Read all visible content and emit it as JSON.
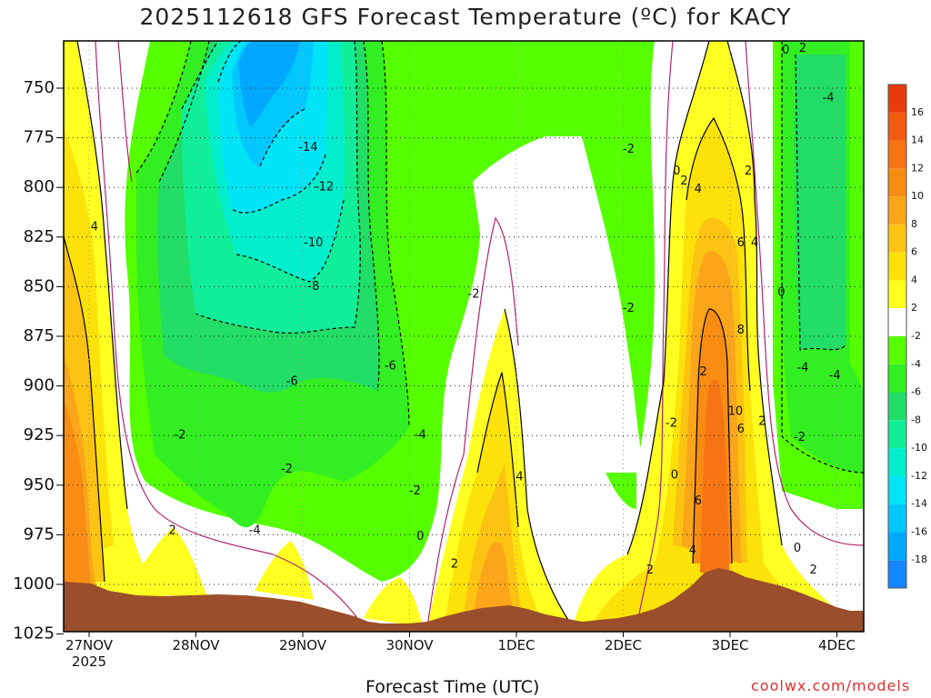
{
  "title": "2025112618 GFS Forecast Temperature (ºC) for KACY",
  "credit": "coolwx.com/models",
  "chart_data": {
    "type": "heatmap",
    "title": "2025112618 GFS Forecast Temperature (ºC) for KACY",
    "xlabel": "Forecast Time (UTC)",
    "ylabel": "",
    "y_axis": {
      "ticks": [
        "750",
        "775",
        "800",
        "825",
        "850",
        "875",
        "900",
        "925",
        "950",
        "975",
        "1000",
        "1025"
      ],
      "range_hpa": [
        725,
        1030
      ],
      "inverted": true
    },
    "x_axis": {
      "ticks": [
        "27NOV",
        "28NOV",
        "29NOV",
        "30NOV",
        "1DEC",
        "2DEC",
        "3DEC",
        "4DEC"
      ],
      "first_tick_sublabel": "2025",
      "range_days": [
        0,
        7.42
      ]
    },
    "grid": "dotted",
    "colorbar": {
      "levels": [
        16,
        14,
        12,
        10,
        8,
        6,
        4,
        2,
        -2,
        -4,
        -6,
        -8,
        -10,
        -12,
        -14,
        -16,
        -18
      ],
      "colors": [
        "#e83a0a",
        "#f25a10",
        "#f77414",
        "#f98c12",
        "#fba51a",
        "#fcc312",
        "#fde20a",
        "#ffff22",
        "#ffffff",
        "#55ff00",
        "#33ee22",
        "#22dd66",
        "#11ee99",
        "#00eecc",
        "#00e5f5",
        "#00c8ff",
        "#00a8ff",
        "#1188ff"
      ]
    },
    "terrain_color": "#9b4e2c",
    "contour_labels": [
      {
        "text": "4",
        "day": 0.05,
        "p": 820
      },
      {
        "text": "-14",
        "day": 2.05,
        "p": 780
      },
      {
        "text": "-12",
        "day": 2.2,
        "p": 800
      },
      {
        "text": "-10",
        "day": 2.1,
        "p": 828
      },
      {
        "text": "-8",
        "day": 2.1,
        "p": 850
      },
      {
        "text": "-6",
        "day": 1.9,
        "p": 898
      },
      {
        "text": "-6",
        "day": 2.82,
        "p": 890
      },
      {
        "text": "-4",
        "day": 3.1,
        "p": 925
      },
      {
        "text": "-2",
        "day": 0.85,
        "p": 925
      },
      {
        "text": "-2",
        "day": 1.85,
        "p": 942
      },
      {
        "text": "-4",
        "day": 1.55,
        "p": 973
      },
      {
        "text": "2",
        "day": 0.78,
        "p": 973
      },
      {
        "text": "-2",
        "day": 3.05,
        "p": 953
      },
      {
        "text": "0",
        "day": 3.1,
        "p": 976
      },
      {
        "text": "2",
        "day": 3.42,
        "p": 990
      },
      {
        "text": "-2",
        "day": 3.6,
        "p": 854
      },
      {
        "text": "4",
        "day": 4.03,
        "p": 946
      },
      {
        "text": "-2",
        "day": 5.05,
        "p": 781
      },
      {
        "text": "-2",
        "day": 5.05,
        "p": 861
      },
      {
        "text": "-2",
        "day": 5.45,
        "p": 919
      },
      {
        "text": "0",
        "day": 5.5,
        "p": 792
      },
      {
        "text": "2",
        "day": 5.57,
        "p": 797
      },
      {
        "text": "4",
        "day": 5.7,
        "p": 801
      },
      {
        "text": "2",
        "day": 6.17,
        "p": 792
      },
      {
        "text": "6",
        "day": 6.1,
        "p": 828
      },
      {
        "text": "4",
        "day": 6.23,
        "p": 828
      },
      {
        "text": "8",
        "day": 6.1,
        "p": 872
      },
      {
        "text": "2",
        "day": 5.75,
        "p": 893
      },
      {
        "text": "10",
        "day": 6.05,
        "p": 913
      },
      {
        "text": "2",
        "day": 6.3,
        "p": 918
      },
      {
        "text": "6",
        "day": 6.1,
        "p": 922
      },
      {
        "text": "0",
        "day": 5.48,
        "p": 945
      },
      {
        "text": "6",
        "day": 5.7,
        "p": 958
      },
      {
        "text": "4",
        "day": 5.65,
        "p": 983
      },
      {
        "text": "2",
        "day": 5.25,
        "p": 993
      },
      {
        "text": "0",
        "day": 6.52,
        "p": 731
      },
      {
        "text": "2",
        "day": 6.68,
        "p": 730
      },
      {
        "text": "-4",
        "day": 6.92,
        "p": 755
      },
      {
        "text": "0",
        "day": 6.48,
        "p": 853
      },
      {
        "text": "-4",
        "day": 6.68,
        "p": 891
      },
      {
        "text": "-4",
        "day": 6.98,
        "p": 895
      },
      {
        "text": "-2",
        "day": 6.65,
        "p": 926
      },
      {
        "text": "0",
        "day": 6.63,
        "p": 982
      },
      {
        "text": "2",
        "day": 6.78,
        "p": 993
      }
    ]
  }
}
